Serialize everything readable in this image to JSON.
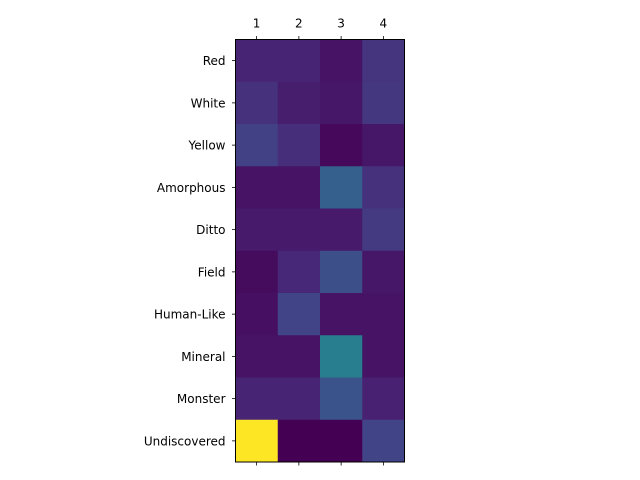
{
  "chart_data": {
    "type": "heatmap",
    "title": "",
    "xlabel": "",
    "ylabel": "",
    "x_tick_position": "top",
    "colormap": "viridis",
    "colorbar": false,
    "grid": false,
    "x_categories": [
      "1",
      "2",
      "3",
      "4"
    ],
    "y_categories": [
      "Red",
      "White",
      "Yellow",
      "Amorphous",
      "Ditto",
      "Field",
      "Human-Like",
      "Mineral",
      "Monster",
      "Undiscovered"
    ],
    "value_range": [
      0,
      1
    ],
    "values": [
      [
        0.1,
        0.1,
        0.05,
        0.15
      ],
      [
        0.14,
        0.08,
        0.06,
        0.16
      ],
      [
        0.19,
        0.13,
        0.02,
        0.06
      ],
      [
        0.05,
        0.05,
        0.3,
        0.14
      ],
      [
        0.07,
        0.07,
        0.07,
        0.17
      ],
      [
        0.03,
        0.11,
        0.24,
        0.06
      ],
      [
        0.04,
        0.2,
        0.05,
        0.05
      ],
      [
        0.05,
        0.05,
        0.42,
        0.05
      ],
      [
        0.1,
        0.1,
        0.26,
        0.09
      ],
      [
        1.0,
        0.0,
        0.0,
        0.2
      ]
    ]
  }
}
